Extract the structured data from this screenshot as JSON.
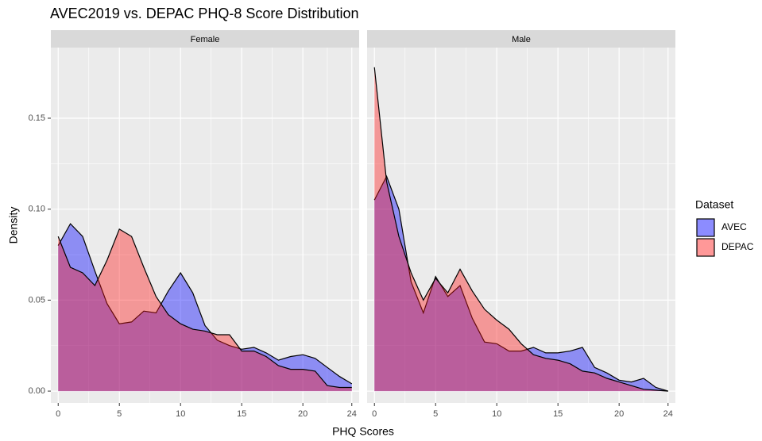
{
  "chart_data": {
    "type": "area",
    "title": "AVEC2019 vs. DEPAC PHQ-8 Score Distribution",
    "xlabel": "PHQ Scores",
    "ylabel": "Density",
    "legend_title": "Dataset",
    "series": [
      {
        "name": "AVEC",
        "color": "#0000ff"
      },
      {
        "name": "DEPAC",
        "color": "#ff1a1a"
      }
    ],
    "x": [
      0,
      1,
      2,
      3,
      4,
      5,
      6,
      7,
      8,
      9,
      10,
      11,
      12,
      13,
      14,
      15,
      16,
      17,
      18,
      19,
      20,
      21,
      22,
      23,
      24
    ],
    "facets": [
      {
        "label": "Female",
        "series_values": [
          [
            0.08,
            0.092,
            0.085,
            0.066,
            0.048,
            0.037,
            0.038,
            0.044,
            0.043,
            0.055,
            0.065,
            0.054,
            0.036,
            0.028,
            0.025,
            0.023,
            0.024,
            0.021,
            0.017,
            0.019,
            0.02,
            0.018,
            0.013,
            0.008,
            0.004
          ],
          [
            0.085,
            0.068,
            0.065,
            0.058,
            0.072,
            0.089,
            0.085,
            0.068,
            0.052,
            0.042,
            0.037,
            0.034,
            0.033,
            0.031,
            0.031,
            0.022,
            0.022,
            0.019,
            0.014,
            0.012,
            0.012,
            0.011,
            0.003,
            0.002,
            0.002
          ]
        ]
      },
      {
        "label": "Male",
        "series_values": [
          [
            0.105,
            0.118,
            0.1,
            0.06,
            0.043,
            0.063,
            0.052,
            0.058,
            0.04,
            0.027,
            0.026,
            0.022,
            0.022,
            0.024,
            0.021,
            0.021,
            0.022,
            0.024,
            0.013,
            0.01,
            0.006,
            0.005,
            0.007,
            0.002,
            0
          ],
          [
            0.178,
            0.115,
            0.085,
            0.065,
            0.05,
            0.062,
            0.054,
            0.067,
            0.055,
            0.045,
            0.039,
            0.034,
            0.026,
            0.02,
            0.018,
            0.017,
            0.015,
            0.011,
            0.01,
            0.007,
            0.005,
            0.003,
            0.001,
            0.0005,
            0
          ]
        ]
      }
    ],
    "xlim": [
      -0.6,
      24.6
    ],
    "xticks": [
      0,
      5,
      10,
      15,
      20,
      24
    ],
    "ylim": [
      -0.0065,
      0.1888
    ],
    "yticks": [
      {
        "value": 0,
        "label": "0.00"
      },
      {
        "value": 0.05,
        "label": "0.05"
      },
      {
        "value": 0.1,
        "label": "0.10"
      },
      {
        "value": 0.15,
        "label": "0.15"
      }
    ],
    "grid": true
  }
}
